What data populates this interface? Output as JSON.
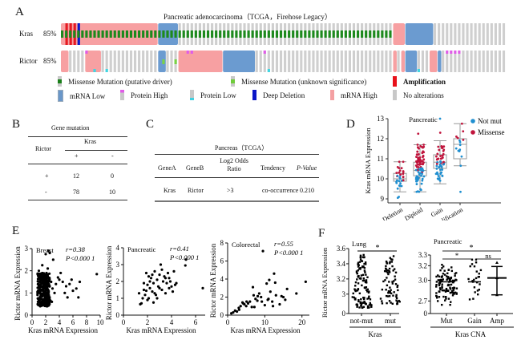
{
  "panels": {
    "A": "A",
    "B": "B",
    "C": "C",
    "D": "D",
    "E": "E",
    "F": "F"
  },
  "oncoprint": {
    "title": "Pancreatic adenocarcinoma（TCGA，Firehose Legacy）",
    "rows": [
      {
        "gene": "Kras",
        "percent": "85%"
      },
      {
        "gene": "Rictor",
        "percent": "85%"
      }
    ],
    "legend": [
      {
        "label": "Missense Mutation (putative driver)",
        "color": "#1a7f1a",
        "kind": "small-center"
      },
      {
        "label": "Missense Mutation (unknown significance)",
        "color": "#6fcc3a",
        "kind": "small-center"
      },
      {
        "label": "Amplification",
        "color": "#e8111a",
        "kind": "full",
        "bold": true
      },
      {
        "label": "mRNA Low",
        "color": "#6a97c9",
        "kind": "outline"
      },
      {
        "label": "Protein High",
        "color": "#e05ce8",
        "kind": "top"
      },
      {
        "label": "Protein Low",
        "color": "#40d0e0",
        "kind": "bottom"
      },
      {
        "label": "Deep Deletion",
        "color": "#0a16c8",
        "kind": "full"
      },
      {
        "label": "mRNA High",
        "color": "#f4a0a2",
        "kind": "full"
      },
      {
        "label": "No alterations",
        "color": "#c8c8c8",
        "kind": "full"
      }
    ],
    "colors": {
      "none": "#cfcfcf",
      "mrna_high": "#f7a0a2",
      "mrna_low": "#6b9bd0",
      "amp": "#e51a22",
      "deep_del": "#0b1ac9",
      "missense_driver": "#1d8a1d",
      "missense_unknown": "#7ad246",
      "protein_high": "#e05ce8",
      "protein_low": "#3fd6e2"
    }
  },
  "tableB": {
    "title": "Gene mutation",
    "row_header": "Rictor",
    "col_header": "Kras",
    "col_signs": [
      "+",
      "-"
    ],
    "rows": [
      {
        "sign": "+",
        "values": [
          "12",
          "0"
        ]
      },
      {
        "sign": "-",
        "values": [
          "78",
          "10"
        ]
      }
    ]
  },
  "tableC": {
    "title": "Pancreas（TCGA）",
    "headers": [
      "GeneA",
      "GeneB",
      "Log2 Odds Ratio",
      "Tendency",
      "P-Value"
    ],
    "rows": [
      [
        "Kras",
        "Rictor",
        ">3",
        "co-occurrence",
        "0.210"
      ]
    ]
  },
  "chart_data": [
    {
      "id": "D",
      "type": "box-strip",
      "title": "Pancreatic",
      "ylabel": "Kras mRNA Expression",
      "ylim": [
        8.8,
        13
      ],
      "yticks": [
        9,
        10,
        11,
        12,
        13
      ],
      "categories": [
        "Deletion",
        "Diploid",
        "Gain",
        "Amplification"
      ],
      "legend": [
        {
          "name": "Not mut",
          "color": "#1f8fd0"
        },
        {
          "name": "Missense",
          "color": "#c0143c"
        }
      ],
      "legend_position": "top-right",
      "boxes": [
        {
          "min": 9.35,
          "q1": 9.88,
          "median": 10.0,
          "q3": 10.27,
          "max": 10.85
        },
        {
          "min": 9.35,
          "q1": 10.15,
          "median": 10.42,
          "q3": 10.83,
          "max": 11.7
        },
        {
          "min": 9.75,
          "q1": 10.52,
          "median": 10.83,
          "q3": 11.2,
          "max": 11.9
        },
        {
          "min": 10.65,
          "q1": 11.0,
          "median": 11.72,
          "q3": 12.0,
          "max": 12.75
        }
      ],
      "points_n": [
        30,
        90,
        55,
        14
      ]
    },
    {
      "id": "E-breast",
      "type": "scatter",
      "title": "Breast",
      "annotation": [
        "r=0.38",
        "P<0.000 1"
      ],
      "xlabel": "Kras mRNA Expression",
      "ylabel": "Rictor mRNA Expression",
      "xlim": [
        0,
        10
      ],
      "ylim": [
        0,
        3
      ],
      "xticks": [
        0,
        2,
        4,
        6,
        8,
        10
      ],
      "yticks": [
        0,
        1,
        2,
        3
      ],
      "points": [
        [
          1.2,
          0.4
        ],
        [
          1.5,
          0.5
        ],
        [
          1.0,
          0.6
        ],
        [
          1.8,
          0.7
        ],
        [
          1.3,
          0.8
        ],
        [
          2.0,
          0.9
        ],
        [
          1.1,
          1.0
        ],
        [
          1.6,
          1.1
        ],
        [
          2.2,
          1.2
        ],
        [
          1.4,
          1.3
        ],
        [
          1.9,
          1.4
        ],
        [
          1.2,
          1.5
        ],
        [
          2.5,
          1.6
        ],
        [
          1.7,
          1.7
        ],
        [
          2.1,
          1.8
        ],
        [
          1.5,
          1.9
        ],
        [
          2.8,
          1.5
        ],
        [
          3.0,
          1.2
        ],
        [
          3.5,
          1.4
        ],
        [
          4.0,
          1.6
        ],
        [
          4.5,
          1.5
        ],
        [
          5.0,
          1.3
        ],
        [
          5.5,
          1.4
        ],
        [
          6.0,
          1.1
        ],
        [
          6.5,
          1.2
        ],
        [
          7.0,
          1.5
        ],
        [
          5.2,
          0.8
        ],
        [
          6.8,
          0.8
        ],
        [
          4.2,
          1.9
        ],
        [
          3.1,
          2.5
        ],
        [
          2.4,
          2.9
        ],
        [
          2.0,
          2.75
        ],
        [
          2.6,
          2.8
        ],
        [
          1.5,
          2.25
        ],
        [
          9.5,
          1.85
        ],
        [
          1.0,
          2.0
        ],
        [
          2.3,
          2.1
        ],
        [
          3.8,
          1.7
        ],
        [
          1.3,
          0.45
        ],
        [
          2.7,
          0.65
        ],
        [
          3.3,
          1.0
        ],
        [
          4.8,
          1.0
        ],
        [
          2.9,
          0.6
        ],
        [
          5.8,
          1.6
        ]
      ]
    },
    {
      "id": "E-pancreatic",
      "type": "scatter",
      "title": "Pancreatic",
      "annotation": [
        "r=0.41",
        "P<0.000 1"
      ],
      "xlabel": "Kras mRNA Expression",
      "ylabel": "Rictor mRNA Expression",
      "xlim": [
        0,
        6.8
      ],
      "ylim": [
        0,
        4
      ],
      "xticks": [
        0,
        2,
        4,
        6
      ],
      "yticks": [
        0,
        1,
        2,
        3,
        4
      ],
      "points": [
        [
          1.3,
          1.3
        ],
        [
          1.5,
          0.7
        ],
        [
          1.6,
          1.0
        ],
        [
          1.7,
          1.5
        ],
        [
          1.8,
          1.2
        ],
        [
          1.9,
          2.5
        ],
        [
          2.0,
          1.8
        ],
        [
          2.1,
          1.0
        ],
        [
          2.2,
          1.6
        ],
        [
          2.3,
          2.2
        ],
        [
          2.4,
          1.4
        ],
        [
          2.5,
          1.9
        ],
        [
          2.6,
          2.6
        ],
        [
          2.7,
          1.2
        ],
        [
          2.8,
          2.1
        ],
        [
          2.9,
          1.7
        ],
        [
          3.0,
          2.4
        ],
        [
          3.1,
          3.0
        ],
        [
          3.2,
          1.5
        ],
        [
          3.3,
          2.0
        ],
        [
          3.4,
          2.3
        ],
        [
          3.5,
          1.3
        ],
        [
          3.6,
          1.9
        ],
        [
          3.7,
          2.5
        ],
        [
          3.8,
          1.6
        ],
        [
          3.9,
          2.0
        ],
        [
          4.0,
          1.7
        ],
        [
          4.2,
          2.6
        ],
        [
          4.3,
          1.8
        ],
        [
          4.4,
          1.9
        ],
        [
          5.2,
          3.3
        ],
        [
          5.15,
          2.95
        ],
        [
          6.6,
          1.6
        ],
        [
          1.4,
          0.65
        ],
        [
          2.0,
          0.9
        ],
        [
          2.5,
          0.75
        ],
        [
          1.9,
          1.45
        ],
        [
          2.2,
          2.0
        ],
        [
          2.8,
          1.0
        ],
        [
          3.0,
          1.6
        ],
        [
          2.4,
          2.4
        ],
        [
          3.5,
          2.2
        ],
        [
          2.6,
          1.3
        ],
        [
          1.7,
          1.9
        ],
        [
          2.1,
          2.3
        ],
        [
          3.2,
          2.7
        ],
        [
          3.8,
          2.2
        ],
        [
          4.1,
          1.4
        ]
      ]
    },
    {
      "id": "E-colorectal",
      "type": "scatter",
      "title": "Colorectal",
      "annotation": [
        "r=0.55",
        "P<0.000 1"
      ],
      "xlabel": "Kras mRNA Expression",
      "ylabel": "Rictor mRNA Expression",
      "xlim": [
        0,
        22
      ],
      "ylim": [
        0,
        8
      ],
      "xticks": [
        0,
        10,
        20
      ],
      "yticks": [
        0,
        2,
        4,
        6,
        8
      ],
      "points": [
        [
          1,
          0.2
        ],
        [
          1.5,
          0.3
        ],
        [
          2,
          0.5
        ],
        [
          2.5,
          0.4
        ],
        [
          3,
          0.8
        ],
        [
          3.5,
          1.0
        ],
        [
          4,
          1.4
        ],
        [
          4.5,
          1.2
        ],
        [
          5,
          1.0
        ],
        [
          5.5,
          1.3
        ],
        [
          6,
          1.5
        ],
        [
          6.5,
          0.9
        ],
        [
          7,
          2.2
        ],
        [
          7.5,
          1.8
        ],
        [
          8,
          1.6
        ],
        [
          8.5,
          2.4
        ],
        [
          9,
          2.0
        ],
        [
          9.5,
          7.1
        ],
        [
          10,
          1.1
        ],
        [
          10.5,
          3.5
        ],
        [
          11,
          1.8
        ],
        [
          11.5,
          2.6
        ],
        [
          12,
          1.5
        ],
        [
          12.5,
          4.6
        ],
        [
          13,
          2.2
        ],
        [
          14,
          1.2
        ],
        [
          15,
          2.0
        ],
        [
          15.5,
          1.7
        ],
        [
          16,
          2.9
        ],
        [
          18.5,
          2.4
        ],
        [
          21,
          3.7
        ],
        [
          6.8,
          3.1
        ],
        [
          11.2,
          3.9
        ],
        [
          12.8,
          3.6
        ],
        [
          9.2,
          1.5
        ],
        [
          7.2,
          0.9
        ],
        [
          4.2,
          1.3
        ],
        [
          5.1,
          1.5
        ],
        [
          3.1,
          0.6
        ],
        [
          8.1,
          2.1
        ],
        [
          10.8,
          1.7
        ],
        [
          14.5,
          2.1
        ],
        [
          12.2,
          1.0
        ]
      ]
    },
    {
      "id": "F-lung",
      "type": "scatter-dot",
      "title": "Lung",
      "xlabel": "Kras",
      "ylabel": "Rictor mRNA Expression",
      "categories": [
        "not-mut",
        "mut"
      ],
      "yticks": [
        "0",
        "3",
        "3.2",
        "3.4",
        "3.6"
      ],
      "ylim_break": [
        0,
        2.85,
        3.6
      ],
      "significance": "*",
      "groups": [
        {
          "name": "not-mut",
          "range": [
            2.82,
            3.53
          ],
          "n": 120
        },
        {
          "name": "mut",
          "range": [
            2.87,
            3.52
          ],
          "n": 70
        }
      ]
    },
    {
      "id": "F-pancreatic",
      "type": "scatter-dot",
      "title": "Pancreatic",
      "xlabel": "Kras CNA",
      "ylabel": "Rictor mRNA Expression",
      "categories": [
        "Mut",
        "Gain",
        "Amp"
      ],
      "yticks": [
        "0",
        "2.7",
        "3.0",
        "3.2",
        "3.3"
      ],
      "ylim_break": [
        0,
        2.6,
        3.3
      ],
      "significance": [
        {
          "from": "Mut",
          "to": "Amp",
          "label": "*"
        },
        {
          "from": "Mut",
          "to": "Gain",
          "label": "*"
        },
        {
          "from": "Gain",
          "to": "Amp",
          "label": "ns"
        }
      ],
      "groups": [
        {
          "name": "Mut",
          "range": [
            2.65,
            3.2
          ],
          "n": 110
        },
        {
          "name": "Gain",
          "range": [
            2.62,
            3.24
          ],
          "n": 25
        },
        {
          "name": "Amp",
          "mean": 3.0,
          "error": [
            2.78,
            3.15
          ],
          "n": 3
        }
      ]
    }
  ]
}
